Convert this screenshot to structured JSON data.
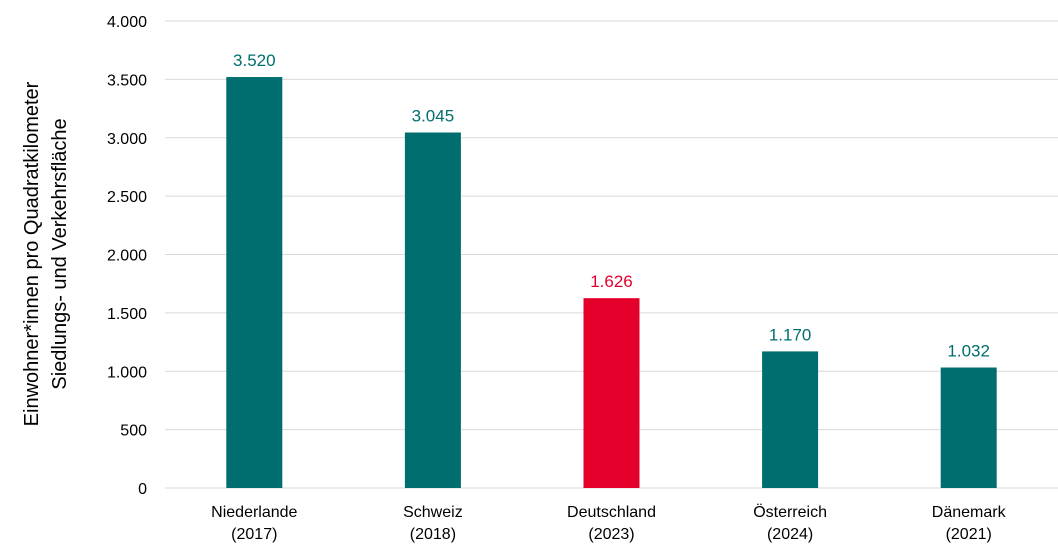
{
  "chart_data": {
    "type": "bar",
    "categories": [
      [
        "Niederlande",
        "(2017)"
      ],
      [
        "Schweiz",
        "(2018)"
      ],
      [
        "Deutschland",
        "(2023)"
      ],
      [
        "Österreich",
        "(2024)"
      ],
      [
        "Dänemark",
        "(2021)"
      ]
    ],
    "values": [
      3520,
      3045,
      1626,
      1170,
      1032
    ],
    "value_labels": [
      "3.520",
      "3.045",
      "1.626",
      "1.170",
      "1.032"
    ],
    "bar_colors": [
      "#006e6e",
      "#006e6e",
      "#e4002b",
      "#006e6e",
      "#006e6e"
    ],
    "ylabel": [
      "Einwohner*innen pro Quadratkilometer",
      "Siedlungs- und Verkehrsfläche"
    ],
    "ylim": [
      0,
      4000
    ],
    "yticks": [
      0,
      500,
      1000,
      1500,
      2000,
      2500,
      3000,
      3500,
      4000
    ],
    "ytick_labels": [
      "0",
      "500",
      "1.000",
      "1.500",
      "2.000",
      "2.500",
      "3.000",
      "3.500",
      "4.000"
    ],
    "grid": true,
    "legend": "none"
  }
}
